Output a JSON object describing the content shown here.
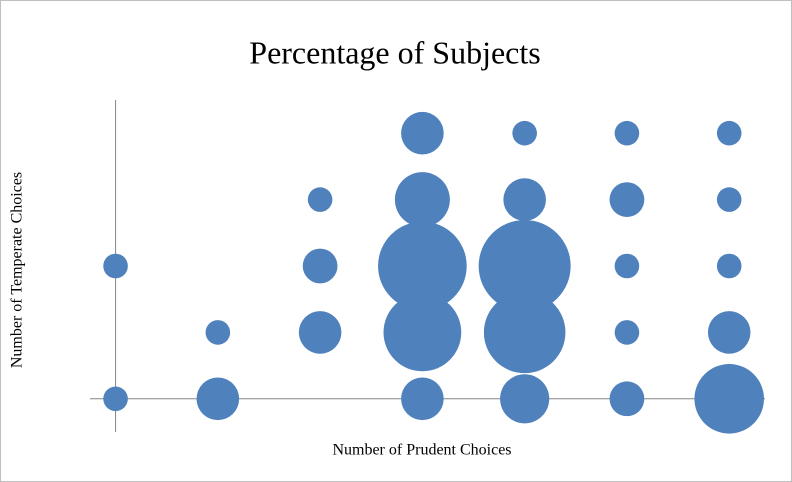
{
  "chart_data": {
    "type": "bubble",
    "title": "Percentage of Subjects",
    "x_label": "Number of Prudent Choices",
    "y_label": "Number of Temperate Choices",
    "color": "#4f81bd",
    "x": [
      0,
      0,
      1,
      1,
      2,
      2,
      2,
      3,
      3,
      3,
      3,
      3,
      4,
      4,
      4,
      4,
      4,
      5,
      5,
      5,
      5,
      5,
      6,
      6,
      6,
      6,
      6
    ],
    "y": [
      0,
      2,
      0,
      1,
      1,
      2,
      3,
      0,
      1,
      2,
      3,
      4,
      0,
      1,
      2,
      3,
      4,
      0,
      1,
      2,
      3,
      4,
      0,
      1,
      2,
      3,
      4
    ],
    "sizes": [
      1,
      1,
      3,
      1,
      3,
      2,
      1,
      3,
      10,
      13,
      5,
      3,
      4,
      11,
      14,
      3,
      1,
      2,
      1,
      1,
      2,
      1,
      8,
      3,
      1,
      1,
      1
    ],
    "xlim": [
      -0.25,
      6.35
    ],
    "ylim": [
      -0.5,
      4.5
    ]
  }
}
